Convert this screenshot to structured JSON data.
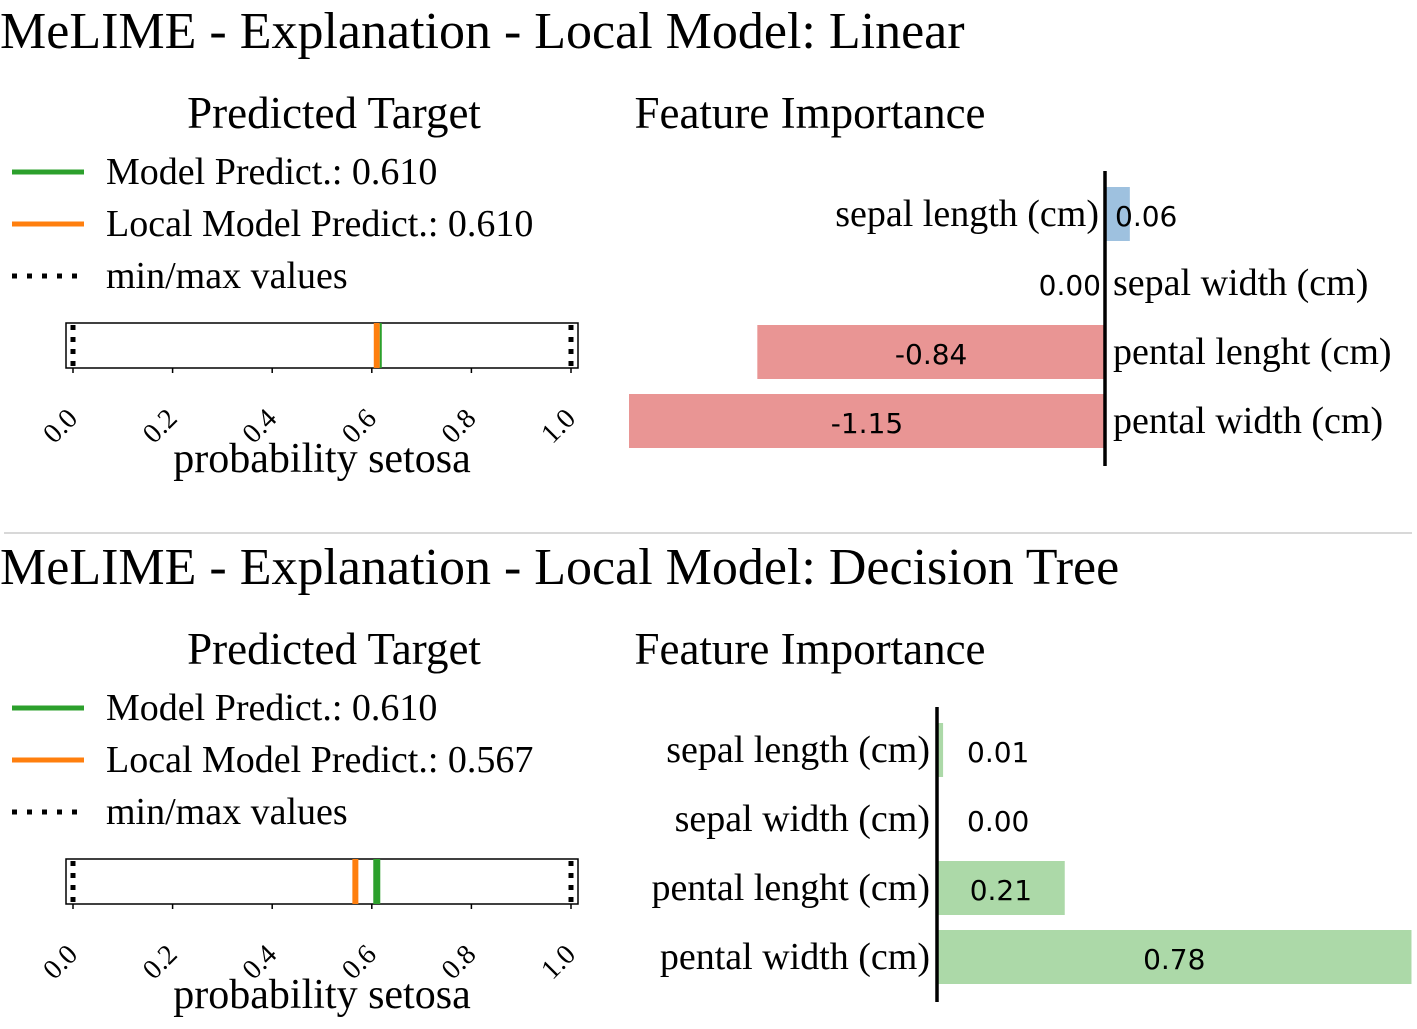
{
  "colors": {
    "model_predict": "#2ca02c",
    "local_predict": "#ff7f0e",
    "positive_bar_linear": "#9ec1df",
    "negative_bar": "#e99594",
    "positive_bar_tree": "#acd9a8",
    "separator": "#cccccc"
  },
  "chart_data": [
    {
      "type": "bar",
      "title": "MeLIME - Explanation - Local Model: Linear",
      "predicted_target": {
        "title": "Predicted Target",
        "legend": [
          {
            "label": "Model Predict.: 0.610",
            "style": "solid-green"
          },
          {
            "label": "Local Model Predict.: 0.610",
            "style": "solid-orange"
          },
          {
            "label": "min/max values",
            "style": "dotted-black"
          }
        ],
        "model_predict": 0.61,
        "local_model_predict": 0.61,
        "min_value": 0.0,
        "max_value": 1.0,
        "xlim": [
          0.0,
          1.0
        ],
        "xticks": [
          "0.0",
          "0.2",
          "0.4",
          "0.6",
          "0.8",
          "1.0"
        ],
        "xlabel": "probability setosa"
      },
      "feature_importance": {
        "title": "Feature Importance",
        "categories": [
          "sepal length (cm)",
          "sepal width (cm)",
          "pental lenght (cm)",
          "pental width (cm)"
        ],
        "values": [
          0.06,
          0.0,
          -0.84,
          -1.15
        ],
        "value_labels": [
          "0.06",
          "0.00",
          "-0.84",
          "-1.15"
        ],
        "xlim": [
          -1.15,
          0.0
        ]
      }
    },
    {
      "type": "bar",
      "title": "MeLIME - Explanation - Local Model: Decision Tree",
      "predicted_target": {
        "title": "Predicted Target",
        "legend": [
          {
            "label": "Model Predict.: 0.610",
            "style": "solid-green"
          },
          {
            "label": "Local Model Predict.: 0.567",
            "style": "solid-orange"
          },
          {
            "label": "min/max values",
            "style": "dotted-black"
          }
        ],
        "model_predict": 0.61,
        "local_model_predict": 0.567,
        "min_value": 0.0,
        "max_value": 1.0,
        "xlim": [
          0.0,
          1.0
        ],
        "xticks": [
          "0.0",
          "0.2",
          "0.4",
          "0.6",
          "0.8",
          "1.0"
        ],
        "xlabel": "probability setosa"
      },
      "feature_importance": {
        "title": "Feature Importance",
        "categories": [
          "sepal length (cm)",
          "sepal width (cm)",
          "pental lenght (cm)",
          "pental width (cm)"
        ],
        "values": [
          0.01,
          0.0,
          0.21,
          0.78
        ],
        "value_labels": [
          "0.01",
          "0.00",
          "0.21",
          "0.78"
        ],
        "xlim": [
          0.0,
          0.78
        ]
      }
    }
  ]
}
